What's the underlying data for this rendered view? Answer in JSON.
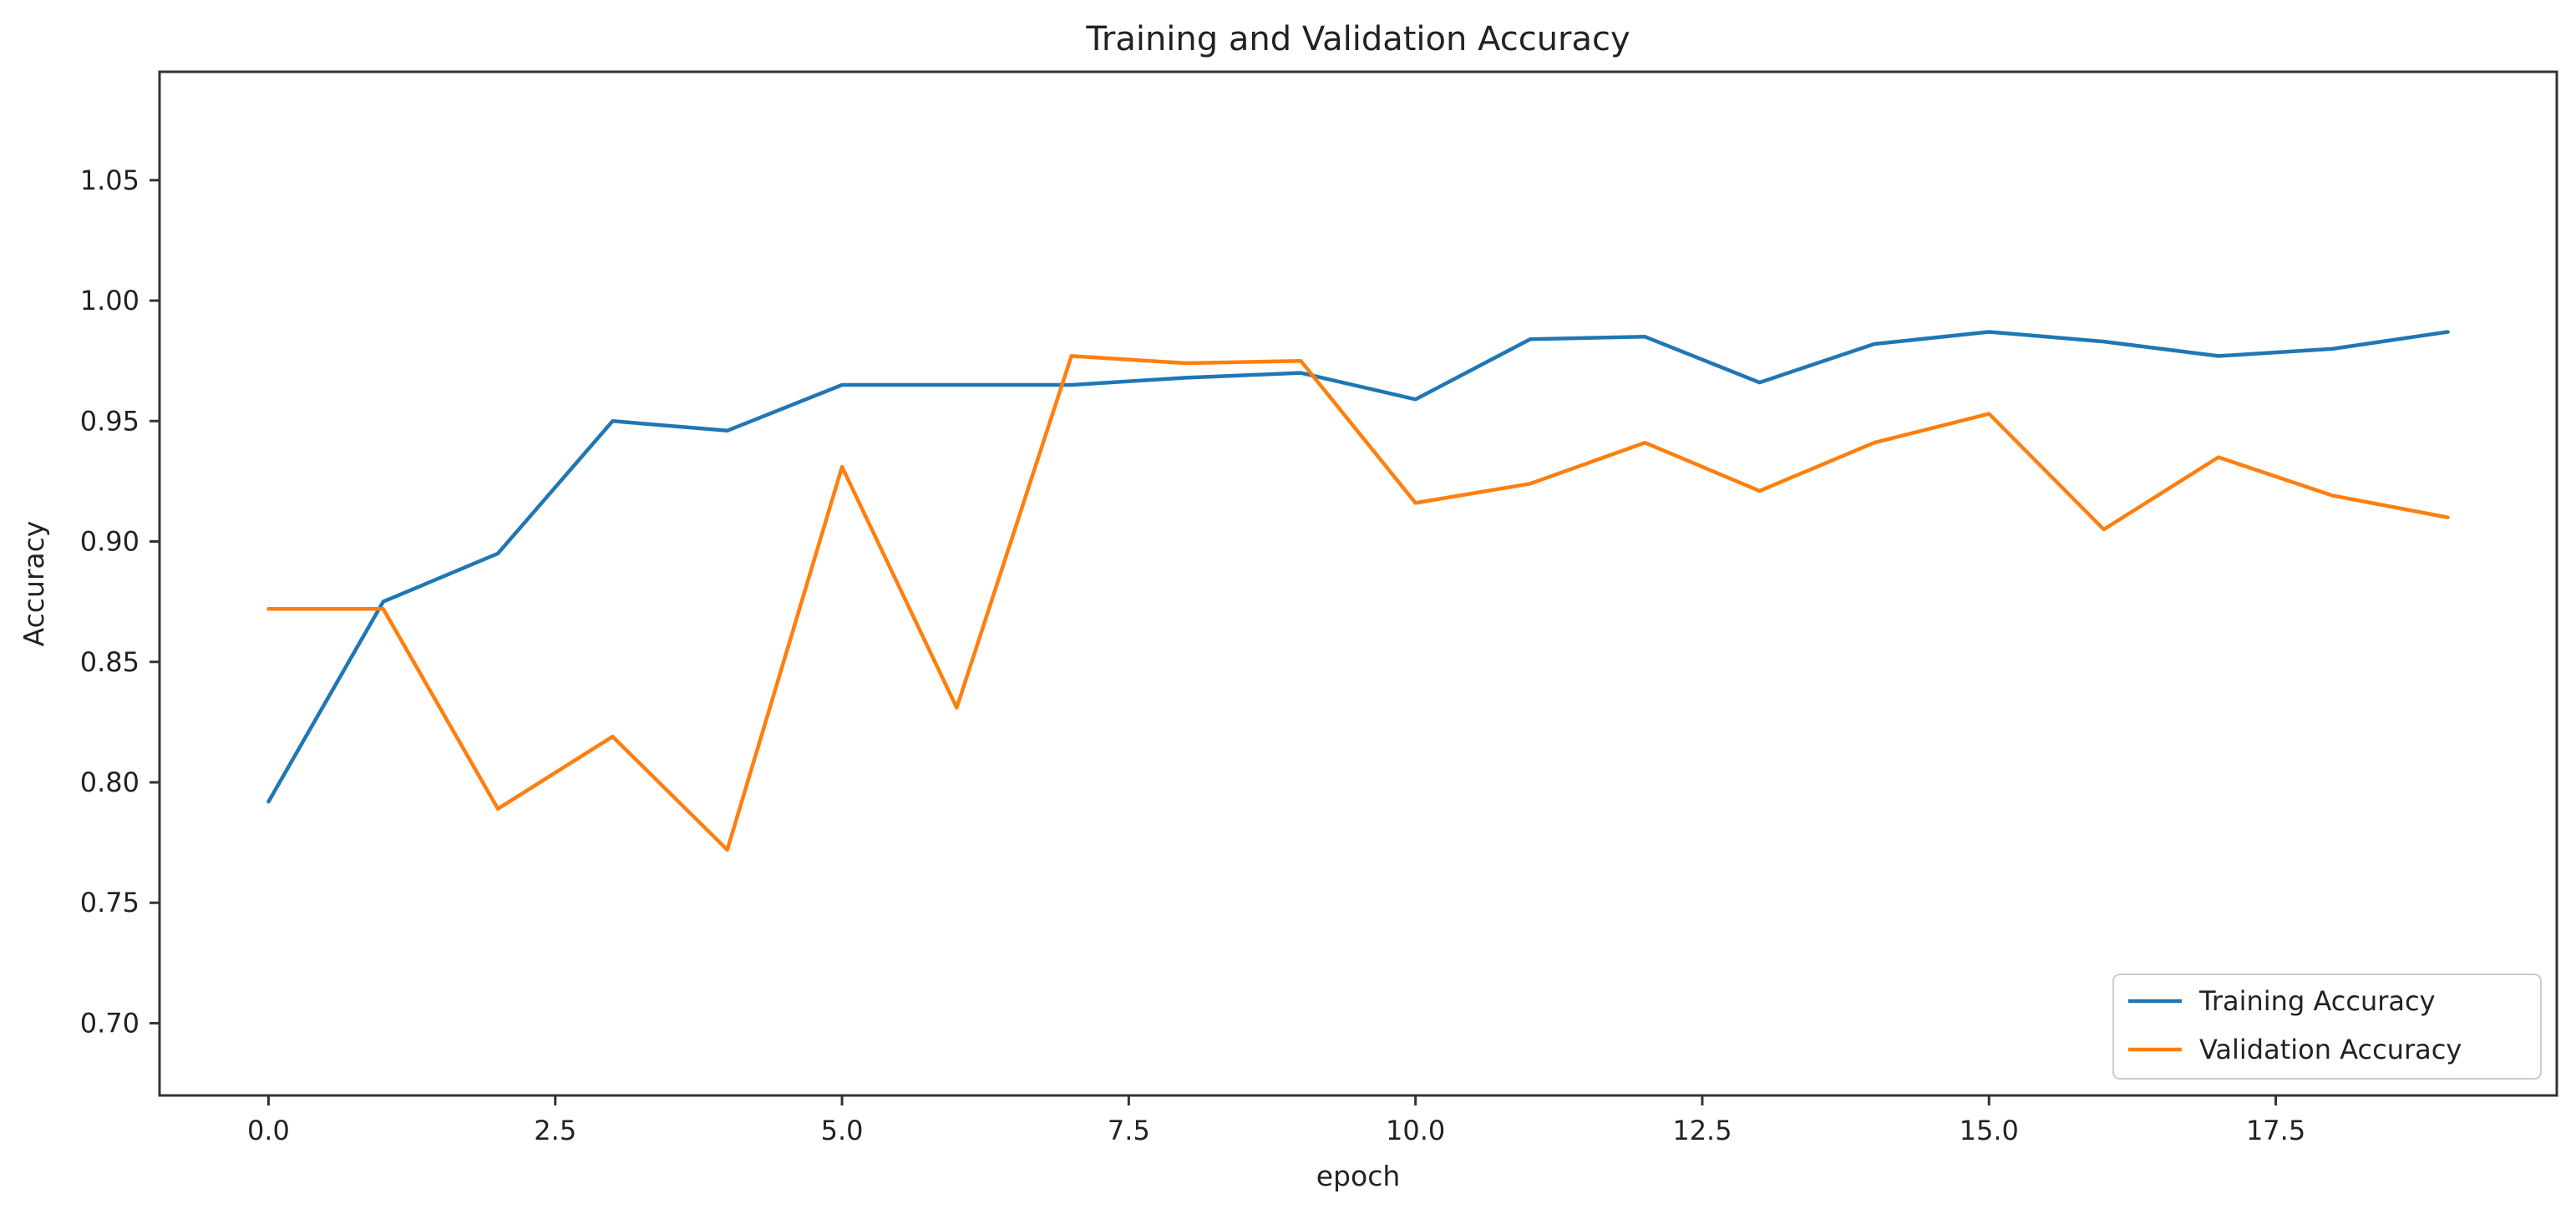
{
  "chart_data": {
    "type": "line",
    "title": "Training and Validation Accuracy",
    "xlabel": "epoch",
    "ylabel": "Accuracy",
    "xlim": [
      -0.95,
      19.95
    ],
    "ylim": [
      0.67,
      1.095
    ],
    "xticks": [
      0.0,
      2.5,
      5.0,
      7.5,
      10.0,
      12.5,
      15.0,
      17.5
    ],
    "xtick_labels": [
      "0.0",
      "2.5",
      "5.0",
      "7.5",
      "10.0",
      "12.5",
      "15.0",
      "17.5"
    ],
    "yticks": [
      0.7,
      0.75,
      0.8,
      0.85,
      0.9,
      0.95,
      1.0,
      1.05
    ],
    "ytick_labels": [
      "0.70",
      "0.75",
      "0.80",
      "0.85",
      "0.90",
      "0.95",
      "1.00",
      "1.05"
    ],
    "grid": false,
    "legend_position": "lower-right",
    "x": [
      0,
      1,
      2,
      3,
      4,
      5,
      6,
      7,
      8,
      9,
      10,
      11,
      12,
      13,
      14,
      15,
      16,
      17,
      18,
      19
    ],
    "series": [
      {
        "name": "Training Accuracy",
        "color": "#1f77b4",
        "values": [
          0.792,
          0.875,
          0.895,
          0.95,
          0.946,
          0.965,
          0.965,
          0.965,
          0.968,
          0.97,
          0.959,
          0.984,
          0.985,
          0.966,
          0.982,
          0.987,
          0.983,
          0.977,
          0.98,
          0.987
        ]
      },
      {
        "name": "Validation Accuracy",
        "color": "#ff7f0e",
        "values": [
          0.872,
          0.872,
          0.789,
          0.819,
          0.772,
          0.931,
          0.831,
          0.977,
          0.974,
          0.975,
          0.916,
          0.924,
          0.941,
          0.921,
          0.941,
          0.953,
          0.905,
          0.935,
          0.919,
          0.91
        ]
      }
    ]
  }
}
